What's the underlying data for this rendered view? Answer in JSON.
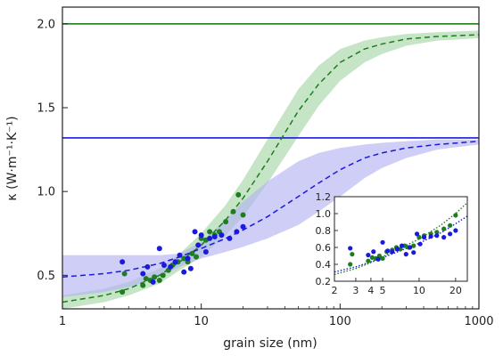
{
  "chart_data": [
    {
      "type": "scatter",
      "xlabel": "grain size (nm)",
      "ylabel": "κ (W·m⁻¹·K⁻¹)",
      "xscale": "log",
      "xlim": [
        1,
        1000
      ],
      "ylim": [
        0.3,
        2.1
      ],
      "xticks": [
        1,
        10,
        100,
        1000
      ],
      "xtick_labels": [
        "1",
        "10",
        "100",
        "1000"
      ],
      "yticks": [
        0.5,
        1.0,
        1.5,
        2.0
      ],
      "ytick_labels": [
        "0.5",
        "1.0",
        "1.5",
        "2.0"
      ],
      "grid": false,
      "colors": {
        "green": "#1e7d1e",
        "blue": "#1a1adf",
        "green_band": "#a8d5a8",
        "blue_band": "#b3b3f2"
      },
      "series": [
        {
          "color": "green",
          "hline": 2.0,
          "fit": {
            "x": [
              1,
              2,
              3,
              5,
              7,
              10,
              15,
              20,
              30,
              50,
              70,
              100,
              150,
              200,
              300,
              500,
              1000
            ],
            "y": [
              0.34,
              0.38,
              0.42,
              0.5,
              0.58,
              0.68,
              0.83,
              0.96,
              1.18,
              1.48,
              1.64,
              1.77,
              1.85,
              1.88,
              1.91,
              1.925,
              1.935
            ]
          },
          "band_upper": [
            0.38,
            0.42,
            0.46,
            0.54,
            0.63,
            0.75,
            0.92,
            1.07,
            1.31,
            1.61,
            1.75,
            1.85,
            1.9,
            1.92,
            1.94,
            1.95,
            1.96
          ],
          "band_lower": [
            0.3,
            0.34,
            0.38,
            0.45,
            0.53,
            0.61,
            0.74,
            0.85,
            1.05,
            1.33,
            1.51,
            1.66,
            1.77,
            1.82,
            1.87,
            1.9,
            1.915
          ],
          "points": {
            "x": [
              2.7,
              2.8,
              3.8,
              4.0,
              4.3,
              4.6,
              5.0,
              5.3,
              5.8,
              6.2,
              6.8,
              7.5,
              8.0,
              8.6,
              9.2,
              10.0,
              10.8,
              11.5,
              12.5,
              13.5,
              15.0,
              17.0,
              18.5,
              20.0
            ],
            "y": [
              0.4,
              0.51,
              0.44,
              0.48,
              0.47,
              0.49,
              0.47,
              0.5,
              0.53,
              0.56,
              0.58,
              0.6,
              0.58,
              0.63,
              0.61,
              0.72,
              0.71,
              0.76,
              0.74,
              0.76,
              0.82,
              0.88,
              0.98,
              0.86
            ]
          }
        },
        {
          "color": "blue",
          "hline": 1.32,
          "fit": {
            "x": [
              1,
              2,
              3,
              5,
              7,
              10,
              15,
              20,
              30,
              50,
              70,
              100,
              150,
              200,
              300,
              500,
              1000
            ],
            "y": [
              0.49,
              0.51,
              0.53,
              0.57,
              0.61,
              0.66,
              0.72,
              0.77,
              0.85,
              0.97,
              1.05,
              1.13,
              1.2,
              1.23,
              1.26,
              1.28,
              1.3
            ]
          },
          "band_upper": [
            0.62,
            0.62,
            0.62,
            0.62,
            0.63,
            0.7,
            0.83,
            0.94,
            1.06,
            1.18,
            1.23,
            1.26,
            1.28,
            1.29,
            1.3,
            1.31,
            1.31
          ],
          "band_lower": [
            0.37,
            0.4,
            0.43,
            0.49,
            0.55,
            0.6,
            0.64,
            0.67,
            0.72,
            0.8,
            0.88,
            0.97,
            1.08,
            1.14,
            1.2,
            1.25,
            1.28
          ],
          "points": {
            "x": [
              2.7,
              3.8,
              4.1,
              4.5,
              5.0,
              5.4,
              6.0,
              6.5,
              7.0,
              7.5,
              8.0,
              8.4,
              9.0,
              9.5,
              10.0,
              10.8,
              11.5,
              12.5,
              14.0,
              16.0,
              18.0,
              20.0
            ],
            "y": [
              0.58,
              0.51,
              0.55,
              0.46,
              0.66,
              0.56,
              0.55,
              0.58,
              0.62,
              0.52,
              0.6,
              0.54,
              0.76,
              0.68,
              0.74,
              0.64,
              0.72,
              0.73,
              0.74,
              0.72,
              0.76,
              0.79
            ]
          }
        }
      ]
    },
    {
      "type": "scatter",
      "inset": true,
      "xscale": "log",
      "xlim": [
        2,
        25
      ],
      "ylim": [
        0.2,
        1.2
      ],
      "xticks": [
        2,
        3,
        4,
        5,
        10,
        20
      ],
      "xtick_labels": [
        "2",
        "3",
        "4",
        "5",
        "10",
        "20"
      ],
      "yticks": [
        0.2,
        0.4,
        0.6,
        0.8,
        1.0,
        1.2
      ],
      "ytick_labels": [
        "0.2",
        "0.4",
        "0.6",
        "0.8",
        "1.0",
        "1.2"
      ],
      "series": [
        {
          "color": "green",
          "fit": {
            "x": [
              2,
              3,
              4,
              5,
              7,
              10,
              15,
              20,
              25
            ],
            "y": [
              0.28,
              0.35,
              0.42,
              0.49,
              0.59,
              0.7,
              0.86,
              1.0,
              1.13
            ]
          },
          "points": {
            "x": [
              2.7,
              2.8,
              3.8,
              4.1,
              4.4,
              4.7,
              5.0,
              5.4,
              6.0,
              6.5,
              7.0,
              7.6,
              8.2,
              9.0,
              10.0,
              11.0,
              12.5,
              14.0,
              16.0,
              18.0,
              20.0
            ],
            "y": [
              0.4,
              0.52,
              0.44,
              0.48,
              0.47,
              0.5,
              0.47,
              0.55,
              0.57,
              0.6,
              0.58,
              0.62,
              0.6,
              0.62,
              0.72,
              0.74,
              0.76,
              0.78,
              0.82,
              0.86,
              0.98
            ]
          }
        },
        {
          "color": "blue",
          "fit": {
            "x": [
              2,
              3,
              4,
              5,
              7,
              10,
              15,
              20,
              25
            ],
            "y": [
              0.31,
              0.37,
              0.43,
              0.48,
              0.56,
              0.65,
              0.77,
              0.88,
              0.97
            ]
          },
          "points": {
            "x": [
              2.7,
              3.8,
              4.2,
              4.6,
              5.0,
              5.5,
              6.0,
              6.6,
              7.2,
              7.8,
              8.4,
              9.0,
              9.6,
              10.2,
              11.0,
              12.5,
              14.0,
              16.0,
              18.0,
              20.0
            ],
            "y": [
              0.59,
              0.51,
              0.55,
              0.46,
              0.66,
              0.56,
              0.55,
              0.58,
              0.62,
              0.52,
              0.6,
              0.54,
              0.76,
              0.64,
              0.72,
              0.73,
              0.74,
              0.72,
              0.76,
              0.8
            ]
          }
        }
      ]
    }
  ]
}
